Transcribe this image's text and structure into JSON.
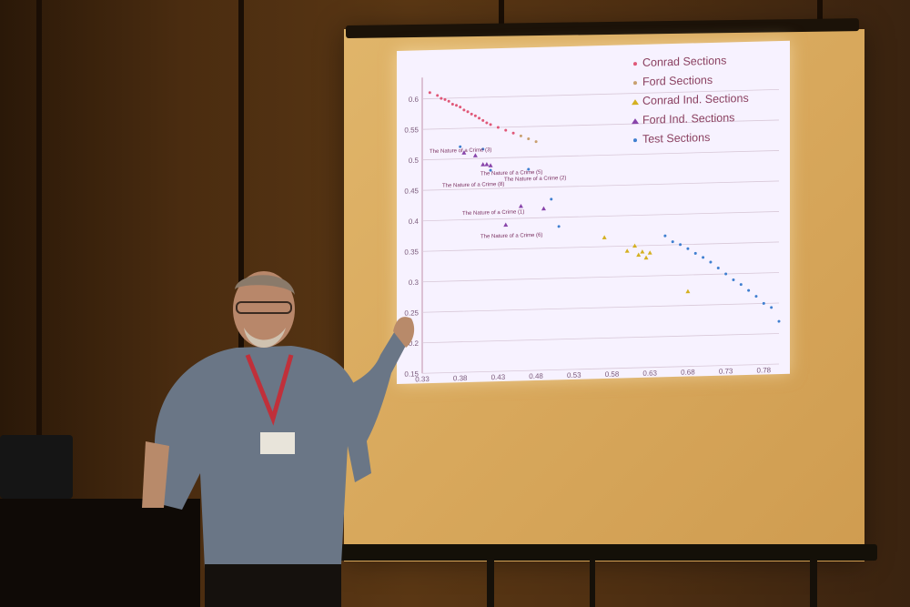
{
  "legend": [
    {
      "label": "Conrad Sections",
      "color": "#e05878",
      "marker": "dot"
    },
    {
      "label": "Ford Sections",
      "color": "#c8a070",
      "marker": "dot"
    },
    {
      "label": "Conrad Ind. Sections",
      "color": "#d4b020",
      "marker": "triangle"
    },
    {
      "label": "Ford Ind. Sections",
      "color": "#8844aa",
      "marker": "triangle"
    },
    {
      "label": "Test Sections",
      "color": "#3f7fd0",
      "marker": "dot"
    }
  ],
  "annotations": [
    "The Nature of a Crime (3)",
    "The Nature of a Crime (5)",
    "The Nature of a Crime (8)",
    "The Nature of a Crime (2)",
    "The Nature of a Crime (1)",
    "The Nature of a Crime (6)"
  ],
  "chart_data": {
    "type": "scatter",
    "title": "",
    "xlabel": "",
    "ylabel": "",
    "xlim": [
      0.33,
      0.8
    ],
    "ylim": [
      0.15,
      0.62
    ],
    "x_ticks": [
      "0.33",
      "0.38",
      "0.43",
      "0.48",
      "0.53",
      "0.58",
      "0.63",
      "0.68",
      "0.73",
      "0.78"
    ],
    "y_ticks": [
      "0.6",
      "0.55",
      "0.5",
      "0.45",
      "0.4",
      "0.35",
      "0.3",
      "0.25",
      "0.2",
      "0.15"
    ],
    "grid": true,
    "legend_position": "top-right",
    "series": [
      {
        "name": "Conrad Sections",
        "points": [
          [
            0.34,
            0.61
          ],
          [
            0.35,
            0.605
          ],
          [
            0.355,
            0.6
          ],
          [
            0.36,
            0.598
          ],
          [
            0.365,
            0.595
          ],
          [
            0.37,
            0.59
          ],
          [
            0.375,
            0.588
          ],
          [
            0.38,
            0.585
          ],
          [
            0.385,
            0.58
          ],
          [
            0.39,
            0.577
          ],
          [
            0.395,
            0.573
          ],
          [
            0.4,
            0.57
          ],
          [
            0.405,
            0.566
          ],
          [
            0.41,
            0.562
          ],
          [
            0.415,
            0.558
          ],
          [
            0.42,
            0.555
          ],
          [
            0.43,
            0.55
          ],
          [
            0.44,
            0.545
          ],
          [
            0.45,
            0.54
          ]
        ]
      },
      {
        "name": "Ford Sections",
        "points": [
          [
            0.46,
            0.535
          ],
          [
            0.47,
            0.53
          ],
          [
            0.48,
            0.525
          ]
        ]
      },
      {
        "name": "Conrad Ind. Sections",
        "points": [
          [
            0.57,
            0.365
          ],
          [
            0.6,
            0.342
          ],
          [
            0.61,
            0.35
          ],
          [
            0.615,
            0.335
          ],
          [
            0.62,
            0.34
          ],
          [
            0.625,
            0.33
          ],
          [
            0.63,
            0.338
          ],
          [
            0.68,
            0.273
          ]
        ]
      },
      {
        "name": "Ford Ind. Sections",
        "points": [
          [
            0.385,
            0.51
          ],
          [
            0.4,
            0.505
          ],
          [
            0.41,
            0.49
          ],
          [
            0.415,
            0.49
          ],
          [
            0.42,
            0.488
          ],
          [
            0.46,
            0.42
          ],
          [
            0.49,
            0.415
          ],
          [
            0.44,
            0.39
          ]
        ]
      },
      {
        "name": "Test Sections",
        "points": [
          [
            0.38,
            0.52
          ],
          [
            0.41,
            0.515
          ],
          [
            0.42,
            0.48
          ],
          [
            0.47,
            0.48
          ],
          [
            0.5,
            0.43
          ],
          [
            0.51,
            0.385
          ],
          [
            0.65,
            0.365
          ],
          [
            0.66,
            0.355
          ],
          [
            0.67,
            0.35
          ],
          [
            0.68,
            0.343
          ],
          [
            0.69,
            0.335
          ],
          [
            0.7,
            0.328
          ],
          [
            0.71,
            0.32
          ],
          [
            0.72,
            0.31
          ],
          [
            0.73,
            0.3
          ],
          [
            0.74,
            0.29
          ],
          [
            0.75,
            0.282
          ],
          [
            0.76,
            0.272
          ],
          [
            0.77,
            0.262
          ],
          [
            0.78,
            0.25
          ],
          [
            0.79,
            0.243
          ],
          [
            0.8,
            0.22
          ]
        ]
      }
    ]
  }
}
